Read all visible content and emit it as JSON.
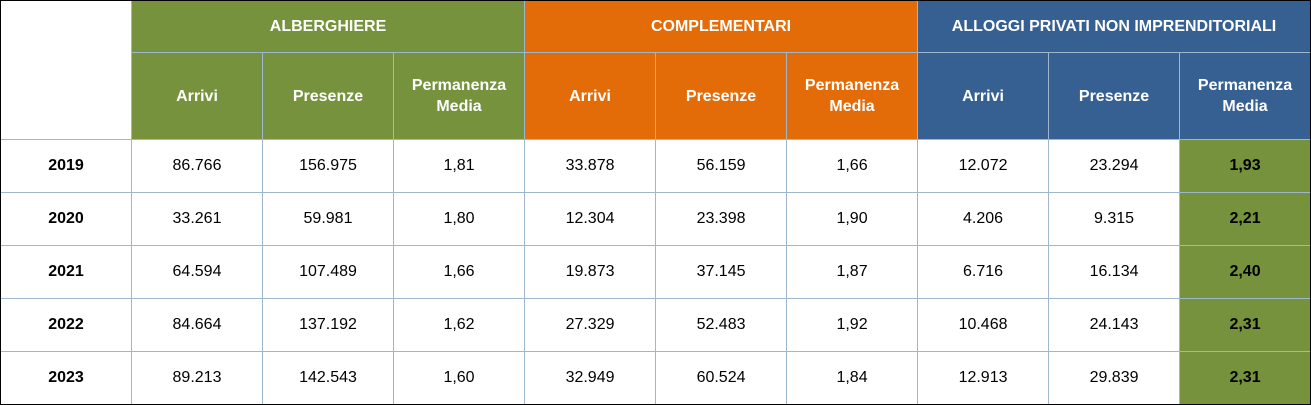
{
  "groups": [
    {
      "label": "ALBERGHIERE",
      "color": "#76923c"
    },
    {
      "label": "COMPLEMENTARI",
      "color": "#e36c09"
    },
    {
      "label": "ALLOGGI PRIVATI NON IMPRENDITORIALI",
      "color": "#366092"
    }
  ],
  "subheaders": [
    {
      "line1": "Arrivi",
      "line2": ""
    },
    {
      "line1": "Presenze",
      "line2": ""
    },
    {
      "line1": "Permanenza",
      "line2": "Media"
    }
  ],
  "rows": [
    {
      "year": "2019",
      "values": [
        "86.766",
        "156.975",
        "1,81",
        "33.878",
        "56.159",
        "1,66",
        "12.072",
        "23.294",
        "1,93"
      ]
    },
    {
      "year": "2020",
      "values": [
        "33.261",
        "59.981",
        "1,80",
        "12.304",
        "23.398",
        "1,90",
        "4.206",
        "9.315",
        "2,21"
      ]
    },
    {
      "year": "2021",
      "values": [
        "64.594",
        "107.489",
        "1,66",
        "19.873",
        "37.145",
        "1,87",
        "6.716",
        "16.134",
        "2,40"
      ]
    },
    {
      "year": "2022",
      "values": [
        "84.664",
        "137.192",
        "1,62",
        "27.329",
        "52.483",
        "1,92",
        "10.468",
        "24.143",
        "2,31"
      ]
    },
    {
      "year": "2023",
      "values": [
        "89.213",
        "142.543",
        "1,60",
        "32.949",
        "60.524",
        "1,84",
        "12.913",
        "29.839",
        "2,31"
      ]
    }
  ],
  "highlight_color": "#76923c"
}
